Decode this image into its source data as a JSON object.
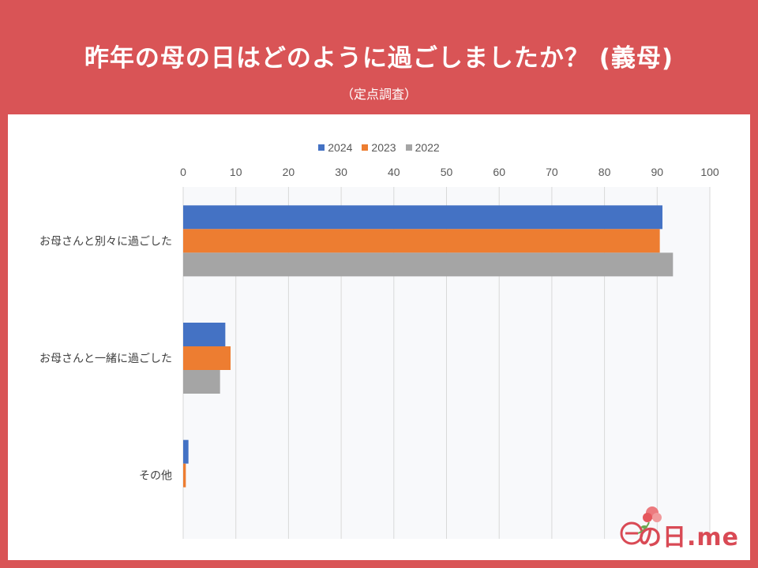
{
  "header": {
    "title": "昨年の母の日はどのように過ごしましたか？ (義母)",
    "subtitle": "（定点調査）"
  },
  "logo": {
    "text": "の日.me",
    "image_text": "母"
  },
  "colors": {
    "background": "#d95456",
    "s2024": "#4472c4",
    "s2023": "#ed7d31",
    "s2022": "#a5a5a5",
    "grid": "#d9d9d9",
    "text": "#595959"
  },
  "chart_data": {
    "type": "bar",
    "orientation": "horizontal",
    "title": "昨年の母の日はどのように過ごしましたか？ (義母)",
    "categories": [
      "お母さんと別々に過ごした",
      "お母さんと一緒に過ごした",
      "その他"
    ],
    "series": [
      {
        "name": "2024",
        "values": [
          91,
          8,
          1
        ]
      },
      {
        "name": "2023",
        "values": [
          90.5,
          9,
          0.5
        ]
      },
      {
        "name": "2022",
        "values": [
          93,
          7,
          0
        ]
      }
    ],
    "xlim": [
      0,
      100
    ],
    "xticks": [
      "0",
      "10",
      "20",
      "30",
      "40",
      "50",
      "60",
      "70",
      "80",
      "90",
      "100"
    ],
    "legend_position": "top",
    "grid": true
  }
}
